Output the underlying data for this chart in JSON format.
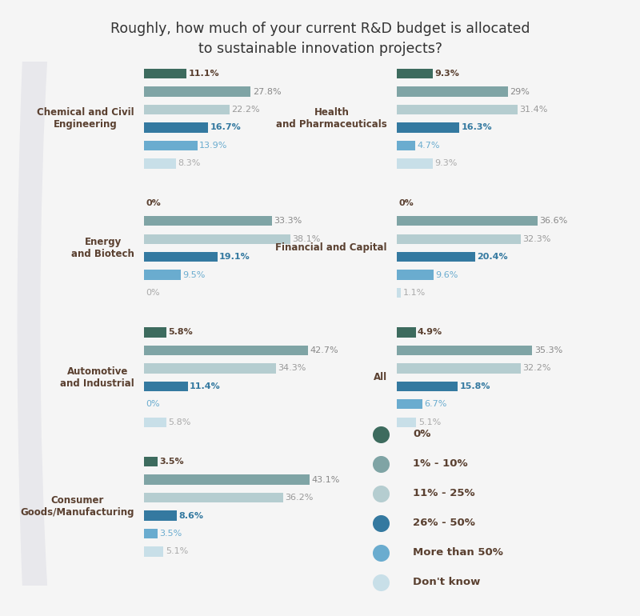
{
  "title": "Roughly, how much of your current R&D budget is allocated\nto sustainable innovation projects?",
  "title_fontsize": 12.5,
  "background_color": "#f5f5f5",
  "panel_bg": "#ffffff",
  "colors": {
    "0%": "#3d6b5e",
    "1-10%": "#7fa4a5",
    "11-25%": "#b5cdd0",
    "26-50%": "#3479a0",
    "More than 50%": "#6aaccf",
    "Don't know": "#c8dfe8"
  },
  "label_colors": {
    "0%": "#5a4030",
    "1-10%": "#888888",
    "11-25%": "#999999",
    "26-50%": "#3479a0",
    "More than 50%": "#6aaccf",
    "Don't know": "#aaaaaa"
  },
  "legend_labels": [
    "0%",
    "1% - 10%",
    "11% - 25%",
    "26% - 50%",
    "More than 50%",
    "Don't know"
  ],
  "legend_colors": [
    "#3d6b5e",
    "#7fa4a5",
    "#b5cdd0",
    "#3479a0",
    "#6aaccf",
    "#c8dfe8"
  ],
  "categories_left": [
    "Chemical and Civil\nEngineering",
    "Energy\nand Biotech",
    "Automotive\nand Industrial",
    "Consumer\nGoods/Manufacturing"
  ],
  "categories_right": [
    "Health\nand Pharmaceuticals",
    "Financial and Capital",
    "All"
  ],
  "data_left": {
    "Chemical and Civil\nEngineering": [
      11.1,
      27.8,
      22.2,
      16.7,
      13.9,
      8.3
    ],
    "Energy\nand Biotech": [
      0.0,
      33.3,
      38.1,
      19.1,
      9.5,
      0.0
    ],
    "Automotive\nand Industrial": [
      5.8,
      42.7,
      34.3,
      11.4,
      0.0,
      5.8
    ],
    "Consumer\nGoods/Manufacturing": [
      3.5,
      43.1,
      36.2,
      8.6,
      3.5,
      5.1
    ]
  },
  "data_right": {
    "Health\nand Pharmaceuticals": [
      9.3,
      29.0,
      31.4,
      16.3,
      4.7,
      9.3
    ],
    "Financial and Capital": [
      0.0,
      36.6,
      32.3,
      20.4,
      9.6,
      1.1
    ],
    "All": [
      4.9,
      35.3,
      32.2,
      15.8,
      6.7,
      5.1
    ]
  },
  "xlim": 50,
  "bar_height": 0.55,
  "cat_label_color": "#5a4030",
  "cat_label_fontsize": 8.5,
  "value_label_fontsize": 8.0
}
